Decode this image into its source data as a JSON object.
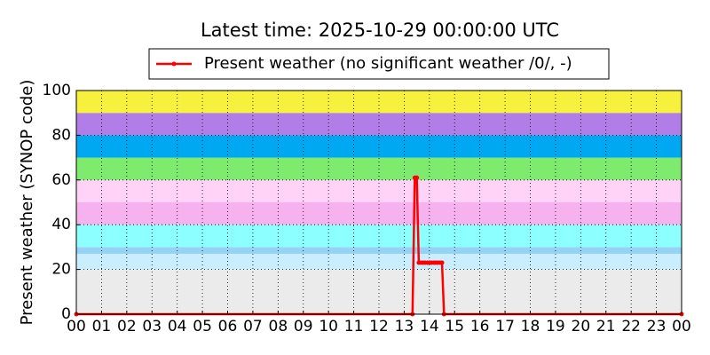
{
  "chart_data": {
    "type": "line",
    "title": "Latest time: 2025-10-29 00:00:00 UTC",
    "y_label": "Present weather (SYNOP code)",
    "xlim": [
      0,
      24
    ],
    "ylim": [
      0,
      100
    ],
    "xticks": [
      {
        "value": 0,
        "label": "00"
      },
      {
        "value": 1,
        "label": "01"
      },
      {
        "value": 2,
        "label": "02"
      },
      {
        "value": 3,
        "label": "03"
      },
      {
        "value": 4,
        "label": "04"
      },
      {
        "value": 5,
        "label": "05"
      },
      {
        "value": 6,
        "label": "06"
      },
      {
        "value": 7,
        "label": "07"
      },
      {
        "value": 8,
        "label": "08"
      },
      {
        "value": 9,
        "label": "09"
      },
      10,
      11,
      12,
      13,
      14,
      15,
      16,
      17,
      18,
      19,
      20,
      21,
      22,
      23,
      {
        "value": 24,
        "label": "00"
      }
    ],
    "yticks": [
      0,
      20,
      40,
      60,
      80,
      100
    ],
    "grid": true,
    "legend": "top",
    "bands": [
      {
        "from": 0,
        "to": 20,
        "color": "#ebebeb"
      },
      {
        "from": 20,
        "to": 27,
        "color": "#c8eeff"
      },
      {
        "from": 27,
        "to": 30,
        "color": "#96d2f5"
      },
      {
        "from": 30,
        "to": 40,
        "color": "#8cffff"
      },
      {
        "from": 40,
        "to": 50,
        "color": "#f5b2ee"
      },
      {
        "from": 50,
        "to": 60,
        "color": "#ffd2f8"
      },
      {
        "from": 60,
        "to": 70,
        "color": "#7eea6e"
      },
      {
        "from": 70,
        "to": 80,
        "color": "#00a8f2"
      },
      {
        "from": 80,
        "to": 90,
        "color": "#b17ee8"
      },
      {
        "from": 90,
        "to": 100,
        "color": "#f7f03c"
      }
    ],
    "x": [
      0,
      13.33,
      13.42,
      13.5,
      13.58,
      13.67,
      13.75,
      13.83,
      13.92,
      14,
      14.08,
      14.17,
      14.25,
      14.33,
      14.42,
      14.5,
      14.58,
      24
    ],
    "series": [
      {
        "name": "Present weather (no significant weather /0/, -)",
        "color": "#ff0000",
        "values": [
          0,
          0,
          61,
          61,
          23,
          23,
          23,
          23,
          23,
          23,
          23,
          23,
          23,
          23,
          23,
          23,
          0,
          0
        ]
      }
    ]
  }
}
